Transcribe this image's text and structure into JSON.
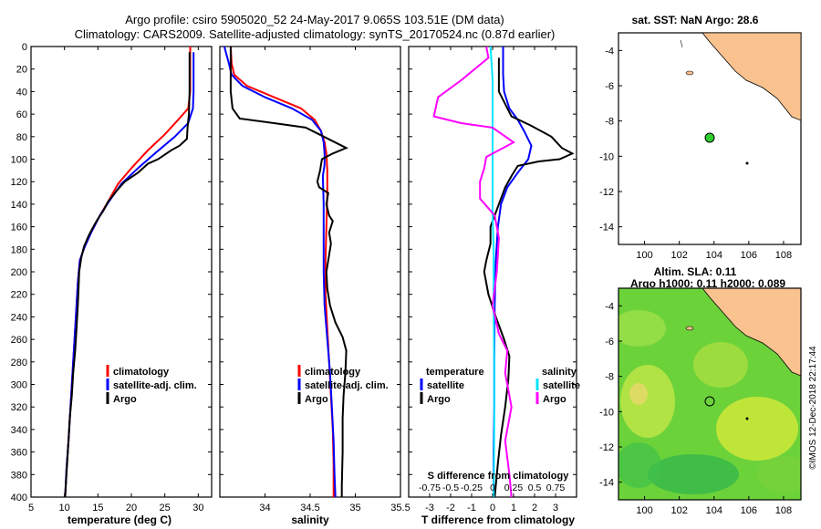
{
  "header": {
    "title_line1": "Argo profile: csiro 5905020_52 24-May-2017 9.065S 103.51E (DM data)",
    "title_line2": "Climatology: CARS2009. Satellite-adjusted climatology: synTS_20170524.nc (0.87d earlier)"
  },
  "colors": {
    "climatology": "#ff0000",
    "satellite": "#0000ff",
    "argo": "#000000",
    "s_clim": "#ff00ff",
    "s_sat": "#00e5ff",
    "land": "#f9c28f"
  },
  "chart_data": [
    {
      "type": "line",
      "xlabel": "temperature (deg C)",
      "xlim": [
        5,
        32
      ],
      "xticks": [
        5,
        10,
        15,
        20,
        25,
        30
      ],
      "ylim": [
        400,
        0
      ],
      "yticks": [
        0,
        20,
        40,
        60,
        80,
        100,
        120,
        140,
        160,
        180,
        200,
        220,
        240,
        260,
        280,
        300,
        320,
        340,
        360,
        380,
        400
      ],
      "legend": [
        "climatology",
        "satellite-adj. clim.",
        "Argo"
      ],
      "series": [
        {
          "name": "climatology",
          "color": "#ff0000",
          "points": [
            [
              28.8,
              0
            ],
            [
              28.8,
              20
            ],
            [
              28.8,
              40
            ],
            [
              28.5,
              55
            ],
            [
              27,
              65
            ],
            [
              25,
              78
            ],
            [
              22.5,
              92
            ],
            [
              20,
              108
            ],
            [
              18,
              122
            ],
            [
              16.5,
              138
            ],
            [
              15.3,
              150
            ],
            [
              14,
              165
            ],
            [
              13,
              178
            ],
            [
              12.3,
              190
            ],
            [
              12,
              210
            ],
            [
              11.8,
              230
            ],
            [
              11.5,
              260
            ],
            [
              11.2,
              290
            ],
            [
              10.9,
              320
            ],
            [
              10.6,
              350
            ],
            [
              10.3,
              375
            ],
            [
              10.1,
              400
            ]
          ]
        },
        {
          "name": "satellite-adj. clim.",
          "color": "#0000ff",
          "points": [
            [
              29.3,
              5
            ],
            [
              29.3,
              20
            ],
            [
              29.3,
              40
            ],
            [
              29.2,
              55
            ],
            [
              28.5,
              68
            ],
            [
              26.5,
              80
            ],
            [
              23.5,
              95
            ],
            [
              21,
              108
            ],
            [
              18.5,
              122
            ],
            [
              16.6,
              138
            ],
            [
              15.3,
              150
            ],
            [
              14,
              165
            ],
            [
              13,
              178
            ],
            [
              12.3,
              190
            ],
            [
              12,
              210
            ],
            [
              11.8,
              230
            ],
            [
              11.5,
              260
            ],
            [
              11.2,
              290
            ],
            [
              10.9,
              320
            ],
            [
              10.6,
              350
            ],
            [
              10.3,
              375
            ],
            [
              10.1,
              400
            ]
          ]
        },
        {
          "name": "Argo",
          "color": "#000000",
          "points": [
            [
              28.7,
              5
            ],
            [
              28.7,
              20
            ],
            [
              28.7,
              40
            ],
            [
              28.6,
              60
            ],
            [
              28.4,
              72
            ],
            [
              28.3,
              82
            ],
            [
              27.2,
              88
            ],
            [
              26,
              92
            ],
            [
              25,
              96
            ],
            [
              24,
              100
            ],
            [
              22.5,
              104
            ],
            [
              21,
              112
            ],
            [
              19,
              120
            ],
            [
              17.8,
              128
            ],
            [
              16.5,
              138
            ],
            [
              15.8,
              146
            ],
            [
              15,
              153
            ],
            [
              14.5,
              158
            ],
            [
              13.6,
              168
            ],
            [
              12.9,
              178
            ],
            [
              12.5,
              188
            ],
            [
              12.2,
              200
            ],
            [
              12.1,
              215
            ],
            [
              12,
              230
            ],
            [
              11.8,
              250
            ],
            [
              11.6,
              270
            ],
            [
              11.3,
              290
            ],
            [
              11.1,
              310
            ],
            [
              10.8,
              330
            ],
            [
              10.6,
              350
            ],
            [
              10.4,
              370
            ],
            [
              10.2,
              390
            ],
            [
              10.1,
              400
            ]
          ]
        }
      ]
    },
    {
      "type": "line",
      "xlabel": "salinity",
      "xlim": [
        33.5,
        35.5
      ],
      "xticks": [
        34,
        34.5,
        35,
        35.5
      ],
      "ylim": [
        400,
        0
      ],
      "legend": [
        "climatology",
        "satellite-adj. clim.",
        "Argo"
      ],
      "series": [
        {
          "name": "climatology",
          "color": "#ff0000",
          "points": [
            [
              33.62,
              0
            ],
            [
              33.63,
              15
            ],
            [
              33.66,
              25
            ],
            [
              33.8,
              35
            ],
            [
              34.1,
              45
            ],
            [
              34.4,
              55
            ],
            [
              34.55,
              65
            ],
            [
              34.62,
              75
            ],
            [
              34.66,
              85
            ],
            [
              34.68,
              95
            ],
            [
              34.69,
              110
            ],
            [
              34.69,
              130
            ],
            [
              34.68,
              160
            ],
            [
              34.67,
              190
            ],
            [
              34.67,
              220
            ],
            [
              34.69,
              250
            ],
            [
              34.71,
              280
            ],
            [
              34.73,
              310
            ],
            [
              34.75,
              340
            ],
            [
              34.76,
              370
            ],
            [
              34.76,
              400
            ]
          ]
        },
        {
          "name": "satellite-adj. clim.",
          "color": "#0000ff",
          "points": [
            [
              33.55,
              0
            ],
            [
              33.6,
              15
            ],
            [
              33.63,
              25
            ],
            [
              33.75,
              35
            ],
            [
              34.0,
              45
            ],
            [
              34.3,
              55
            ],
            [
              34.52,
              65
            ],
            [
              34.62,
              75
            ],
            [
              34.65,
              85
            ],
            [
              34.66,
              95
            ],
            [
              34.66,
              105
            ],
            [
              34.64,
              115
            ],
            [
              34.65,
              140
            ],
            [
              34.65,
              170
            ],
            [
              34.65,
              200
            ],
            [
              34.66,
              230
            ],
            [
              34.69,
              260
            ],
            [
              34.72,
              290
            ],
            [
              34.74,
              320
            ],
            [
              34.76,
              350
            ],
            [
              34.77,
              380
            ],
            [
              34.78,
              400
            ]
          ]
        },
        {
          "name": "Argo",
          "color": "#000000",
          "points": [
            [
              33.62,
              0
            ],
            [
              33.62,
              20
            ],
            [
              33.62,
              40
            ],
            [
              33.64,
              55
            ],
            [
              33.72,
              64
            ],
            [
              34.1,
              68
            ],
            [
              34.45,
              72
            ],
            [
              34.6,
              78
            ],
            [
              34.9,
              90
            ],
            [
              34.75,
              95
            ],
            [
              34.63,
              100
            ],
            [
              34.61,
              110
            ],
            [
              34.58,
              120
            ],
            [
              34.6,
              125
            ],
            [
              34.7,
              130
            ],
            [
              34.68,
              140
            ],
            [
              34.71,
              150
            ],
            [
              34.75,
              155
            ],
            [
              34.71,
              165
            ],
            [
              34.73,
              175
            ],
            [
              34.71,
              185
            ],
            [
              34.68,
              200
            ],
            [
              34.69,
              215
            ],
            [
              34.72,
              230
            ],
            [
              34.78,
              245
            ],
            [
              34.86,
              258
            ],
            [
              34.9,
              270
            ],
            [
              34.89,
              290
            ],
            [
              34.87,
              310
            ],
            [
              34.86,
              330
            ],
            [
              34.86,
              360
            ],
            [
              34.85,
              390
            ],
            [
              34.85,
              400
            ]
          ]
        }
      ]
    },
    {
      "type": "line",
      "xlabel": "T difference from climatology",
      "top_axis_label": "S difference from climatology",
      "xlim": [
        -4,
        4
      ],
      "xticks": [
        -3,
        -2,
        -1,
        0,
        1,
        2,
        3
      ],
      "top_xticks_labels": [
        "-0.75",
        "-0.5",
        "-0.25",
        "0",
        "0.25",
        "0.5",
        "0.75"
      ],
      "ylim": [
        400,
        0
      ],
      "legend_temperature": {
        "title": "temperature",
        "items": [
          "satellite",
          "Argo"
        ]
      },
      "legend_salinity": {
        "title": "salinity",
        "items": [
          "satellite",
          "Argo"
        ]
      },
      "series": [
        {
          "name": "temperature satellite",
          "color": "#0000ff",
          "points": [
            [
              0.5,
              0
            ],
            [
              0.5,
              25
            ],
            [
              0.55,
              40
            ],
            [
              0.8,
              55
            ],
            [
              1.2,
              65
            ],
            [
              1.5,
              75
            ],
            [
              1.85,
              88
            ],
            [
              1.7,
              100
            ],
            [
              1.2,
              112
            ],
            [
              0.7,
              125
            ],
            [
              0.4,
              140
            ],
            [
              0.25,
              160
            ],
            [
              0.15,
              190
            ],
            [
              0.1,
              230
            ],
            [
              0.08,
              280
            ],
            [
              0.08,
              320
            ],
            [
              0.05,
              360
            ],
            [
              0.05,
              400
            ]
          ]
        },
        {
          "name": "temperature Argo",
          "color": "#000000",
          "points": [
            [
              0.3,
              10
            ],
            [
              0.3,
              40
            ],
            [
              0.9,
              62
            ],
            [
              1.8,
              70
            ],
            [
              2.8,
              80
            ],
            [
              3.3,
              90
            ],
            [
              3.8,
              95
            ],
            [
              3.2,
              100
            ],
            [
              2.2,
              102
            ],
            [
              1.2,
              106
            ],
            [
              0.9,
              115
            ],
            [
              0.6,
              125
            ],
            [
              0.3,
              140
            ],
            [
              -0.1,
              160
            ],
            [
              -0.1,
              175
            ],
            [
              -0.3,
              190
            ],
            [
              -0.4,
              200
            ],
            [
              -0.2,
              220
            ],
            [
              0.15,
              240
            ],
            [
              0.55,
              260
            ],
            [
              0.8,
              275
            ],
            [
              0.75,
              295
            ],
            [
              0.6,
              320
            ],
            [
              0.4,
              345
            ],
            [
              0.25,
              370
            ],
            [
              0.1,
              400
            ]
          ]
        },
        {
          "name": "salinity satellite",
          "color": "#00e5ff",
          "points": [
            [
              -0.1,
              0
            ],
            [
              0,
              30
            ],
            [
              0,
              60
            ],
            [
              0,
              90
            ],
            [
              0,
              130
            ],
            [
              0,
              150
            ],
            [
              0.05,
              180
            ],
            [
              0.05,
              230
            ],
            [
              0.08,
              280
            ],
            [
              0.08,
              340
            ],
            [
              0.05,
              400
            ]
          ]
        },
        {
          "name": "salinity Argo",
          "color": "#ff00ff",
          "points": [
            [
              -0.3,
              0
            ],
            [
              -0.2,
              10
            ],
            [
              -1.5,
              30
            ],
            [
              -2.6,
              45
            ],
            [
              -2.8,
              62
            ],
            [
              -1.5,
              68
            ],
            [
              0,
              72
            ],
            [
              1.0,
              85
            ],
            [
              0.5,
              90
            ],
            [
              -0.3,
              98
            ],
            [
              -0.4,
              108
            ],
            [
              -0.6,
              120
            ],
            [
              -0.6,
              135
            ],
            [
              0.1,
              150
            ],
            [
              0.3,
              170
            ],
            [
              0.2,
              200
            ],
            [
              0,
              230
            ],
            [
              0.3,
              255
            ],
            [
              0.7,
              270
            ],
            [
              0.6,
              290
            ],
            [
              0.9,
              320
            ],
            [
              0.6,
              350
            ],
            [
              0.8,
              380
            ],
            [
              0.9,
              400
            ]
          ]
        }
      ]
    }
  ],
  "map_top": {
    "title": "sat. SST: NaN Argo: 28.6",
    "xticks": [
      "100",
      "102",
      "104",
      "106",
      "108"
    ],
    "yticks": [
      "-4",
      "-6",
      "-8",
      "-10",
      "-12",
      "-14"
    ]
  },
  "map_bottom": {
    "title_line1": "Altim. SLA: 0.11",
    "title_line2": "Argo h1000: 0.11 h2000: 0.089",
    "xticks": [
      "100",
      "102",
      "104",
      "106",
      "108"
    ],
    "yticks": [
      "-4",
      "-6",
      "-8",
      "-10",
      "-12",
      "-14"
    ]
  },
  "footer": {
    "credit": "©IMOS 12-Dec-2018 22:17:44"
  }
}
